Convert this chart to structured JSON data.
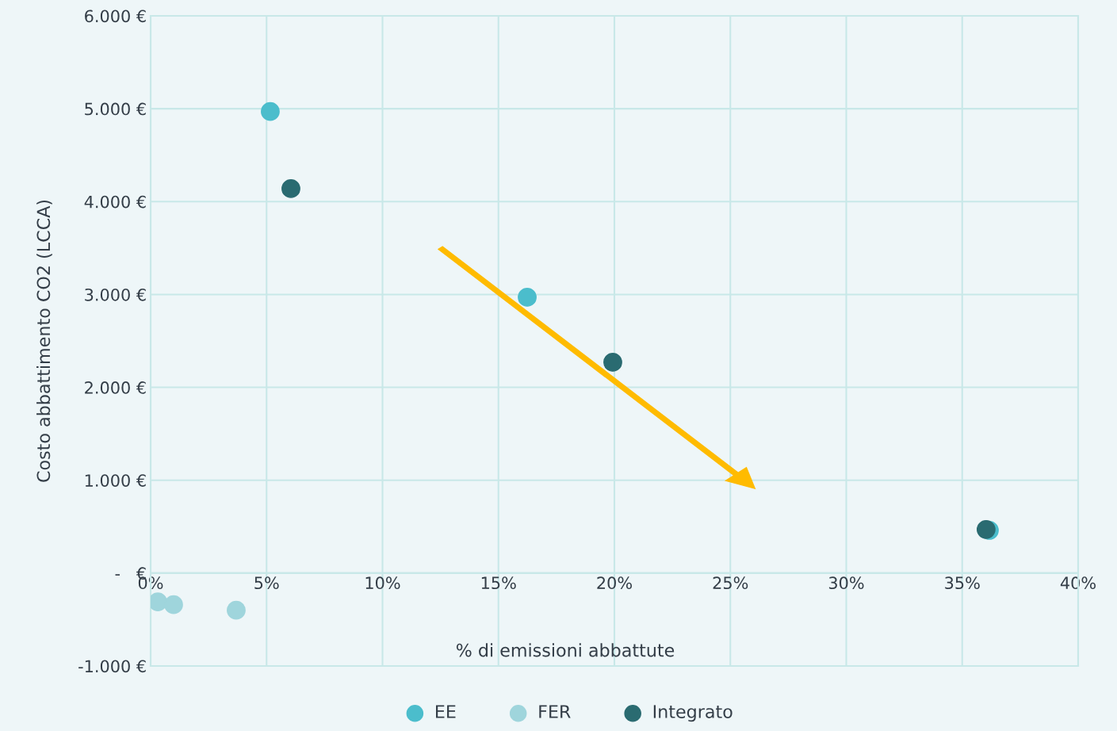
{
  "chart_data": {
    "type": "scatter",
    "xlabel": "% di emissioni abbattute",
    "ylabel": "Costo abbattimento CO2 (LCCA)",
    "series": [
      {
        "name": "EE",
        "color": "#4bbdcc",
        "x": [
          5.16,
          16.24,
          36.17
        ],
        "values": [
          4970,
          2970,
          460
        ]
      },
      {
        "name": "FER",
        "color": "#9fd5dc",
        "x": [
          0.31,
          0.99,
          3.69
        ],
        "values": [
          -310,
          -340,
          -400
        ]
      },
      {
        "name": "Integrato",
        "color": "#2a6b71",
        "x": [
          6.05,
          19.93,
          36.03
        ],
        "values": [
          4140,
          2270,
          470
        ]
      }
    ],
    "xlim": [
      0,
      40
    ],
    "ylim": [
      -1000,
      6000
    ],
    "xticks": [
      {
        "value": 0,
        "label": "0%"
      },
      {
        "value": 5,
        "label": "5%"
      },
      {
        "value": 10,
        "label": "10%"
      },
      {
        "value": 15,
        "label": "15%"
      },
      {
        "value": 20,
        "label": "20%"
      },
      {
        "value": 25,
        "label": "25%"
      },
      {
        "value": 30,
        "label": "30%"
      },
      {
        "value": 35,
        "label": "35%"
      },
      {
        "value": 40,
        "label": "40%"
      }
    ],
    "yticks": [
      {
        "value": -1000,
        "label": "-1.000 €"
      },
      {
        "value": 0,
        "label": "-   €"
      },
      {
        "value": 1000,
        "label": "1.000 €"
      },
      {
        "value": 2000,
        "label": "2.000 €"
      },
      {
        "value": 3000,
        "label": "3.000 €"
      },
      {
        "value": 4000,
        "label": "4.000 €"
      },
      {
        "value": 5000,
        "label": "5.000 €"
      },
      {
        "value": 6000,
        "label": "6.000 €"
      }
    ],
    "grid": true,
    "legend": "bottom",
    "marker": "circle"
  }
}
